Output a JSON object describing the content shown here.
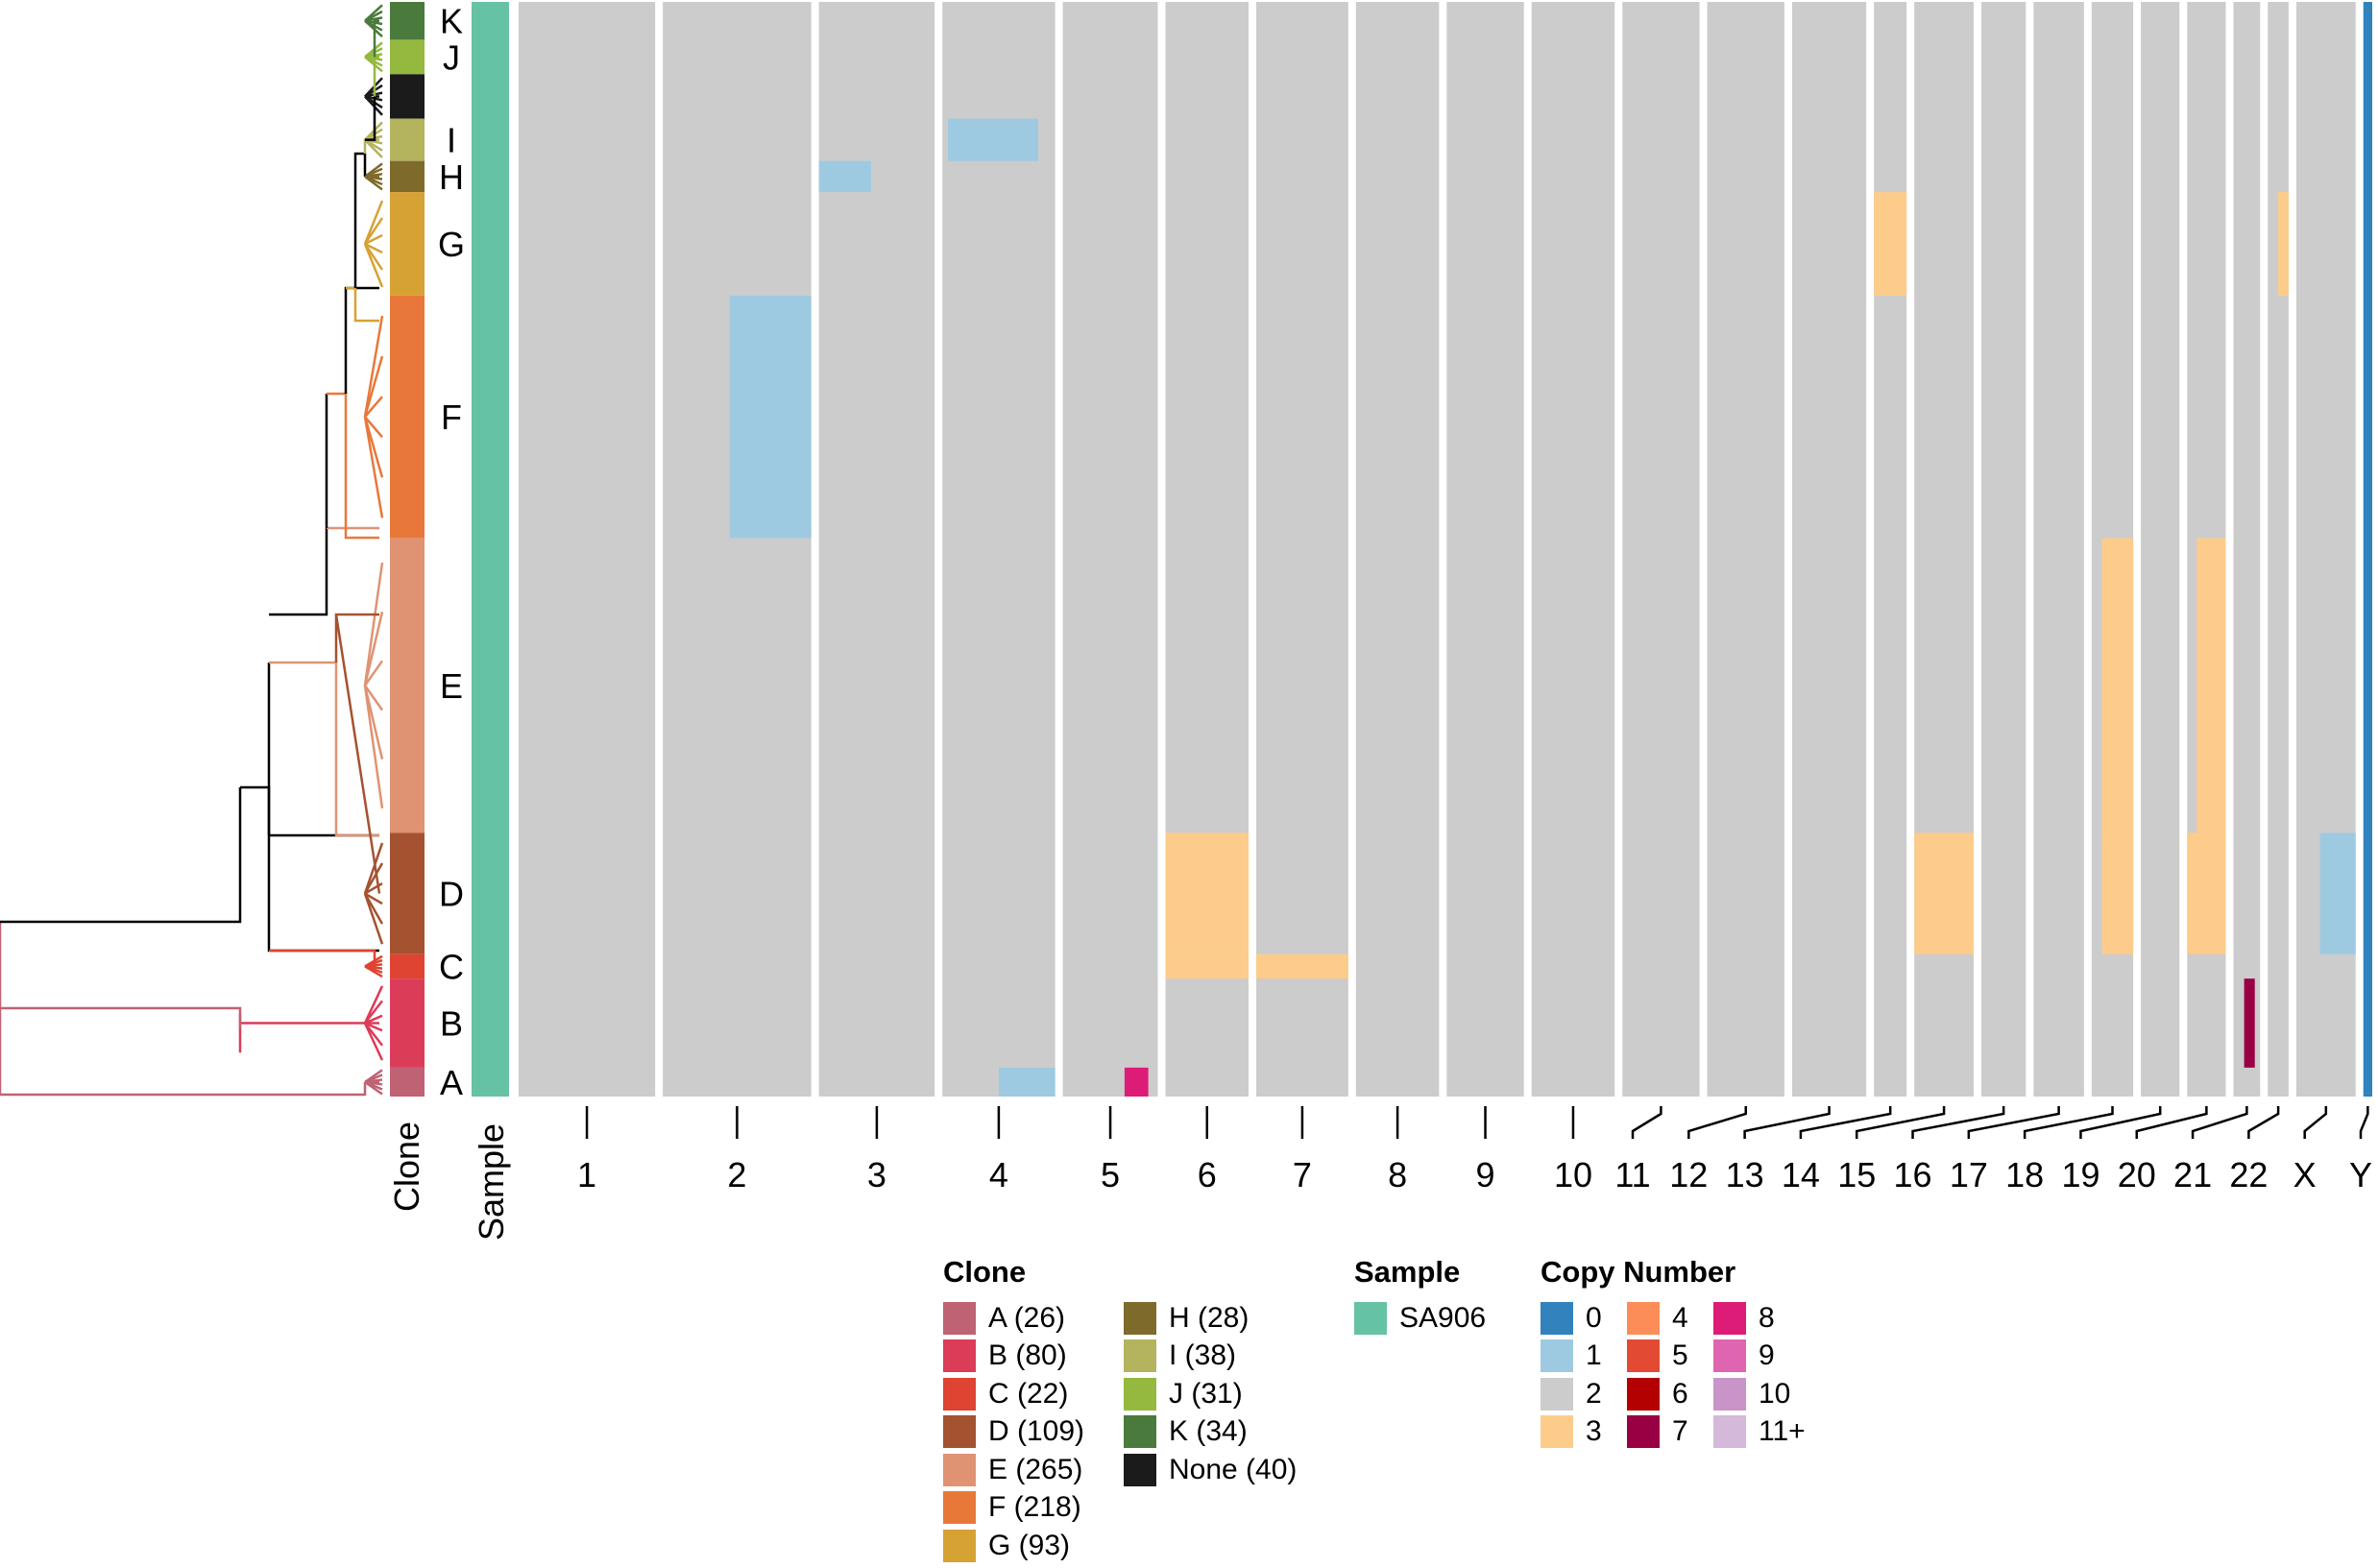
{
  "chart_data": {
    "type": "heatmap",
    "title": "",
    "row_annotations": {
      "clone_label": "Clone",
      "sample_label": "Sample"
    },
    "clones": [
      {
        "id": "K",
        "count": 34,
        "color": "#4A7A3C"
      },
      {
        "id": "J",
        "count": 31,
        "color": "#94B93E"
      },
      {
        "id": "None",
        "count": 40,
        "color": "#1B1B1B"
      },
      {
        "id": "I",
        "count": 38,
        "color": "#B4B35E"
      },
      {
        "id": "H",
        "count": 28,
        "color": "#7E6A2A"
      },
      {
        "id": "G",
        "count": 93,
        "color": "#D6A234"
      },
      {
        "id": "F",
        "count": 218,
        "color": "#E8783A"
      },
      {
        "id": "E",
        "count": 265,
        "color": "#DF9373"
      },
      {
        "id": "D",
        "count": 109,
        "color": "#A45230"
      },
      {
        "id": "C",
        "count": 22,
        "color": "#DF4332"
      },
      {
        "id": "B",
        "count": 80,
        "color": "#DB3C58"
      },
      {
        "id": "A",
        "count": 26,
        "color": "#BE6274"
      }
    ],
    "chromosomes": [
      "1",
      "2",
      "3",
      "4",
      "5",
      "6",
      "7",
      "8",
      "9",
      "10",
      "11",
      "12",
      "13",
      "14",
      "15",
      "16",
      "17",
      "18",
      "19",
      "20",
      "21",
      "22",
      "X",
      "Y"
    ],
    "chromosome_widths": [
      92,
      100,
      78,
      76,
      64,
      56,
      62,
      56,
      52,
      56,
      52,
      52,
      50,
      22,
      40,
      30,
      34,
      28,
      26,
      26,
      18,
      14,
      40,
      6
    ],
    "baseline_copy_number": 2,
    "segments": [
      {
        "clone": "D",
        "chr": "6",
        "start": 0,
        "end": 1,
        "cn": 3
      },
      {
        "clone": "D",
        "chr": "15",
        "start": 0,
        "end": 1,
        "cn": 3
      },
      {
        "clone": "D",
        "chr": "20",
        "start": 0,
        "end": 1,
        "cn": 3
      },
      {
        "clone": "D",
        "chr": "18",
        "start": 0.25,
        "end": 1,
        "cn": 3
      },
      {
        "clone": "D",
        "chr": "X",
        "start": 0.4,
        "end": 1,
        "cn": 1
      },
      {
        "clone": "C",
        "chr": "6",
        "start": 0,
        "end": 1,
        "cn": 3
      },
      {
        "clone": "C",
        "chr": "7",
        "start": 0,
        "end": 1,
        "cn": 3
      },
      {
        "clone": "E",
        "chr": "18",
        "start": 0.25,
        "end": 1,
        "cn": 3
      },
      {
        "clone": "E",
        "chr": "20",
        "start": 0.25,
        "end": 1,
        "cn": 3
      },
      {
        "clone": "F",
        "chr": "2",
        "start": 0.45,
        "end": 1,
        "cn": 1
      },
      {
        "clone": "G",
        "chr": "14",
        "start": 0,
        "end": 1,
        "cn": 3
      },
      {
        "clone": "G",
        "chr": "22",
        "start": 0.5,
        "end": 1,
        "cn": 3
      },
      {
        "clone": "I",
        "chr": "4",
        "start": 0.05,
        "end": 0.85,
        "cn": 1
      },
      {
        "clone": "H",
        "chr": "3",
        "start": 0,
        "end": 0.45,
        "cn": 1
      },
      {
        "clone": "B",
        "chr": "21",
        "start": 0.4,
        "end": 0.8,
        "cn": 7
      },
      {
        "clone": "A",
        "chr": "4",
        "start": 0.5,
        "end": 1,
        "cn": 1
      },
      {
        "clone": "A",
        "chr": "5",
        "start": 0.65,
        "end": 0.9,
        "cn": 8
      }
    ],
    "legend": {
      "clone_title": "Clone",
      "clone_items": [
        "A (26)",
        "B (80)",
        "C (22)",
        "D (109)",
        "E (265)",
        "F (218)",
        "G (93)",
        "H (28)",
        "I (38)",
        "J (31)",
        "K (34)",
        "None (40)"
      ],
      "sample_title": "Sample",
      "sample_items": [
        {
          "label": "SA906",
          "color": "#66C2A5"
        }
      ],
      "cn_title": "Copy Number",
      "cn_items": [
        {
          "label": "0",
          "color": "#3182BD"
        },
        {
          "label": "1",
          "color": "#9ECAE1"
        },
        {
          "label": "2",
          "color": "#CCCCCC"
        },
        {
          "label": "3",
          "color": "#FDCC8A"
        },
        {
          "label": "4",
          "color": "#FC8D59"
        },
        {
          "label": "5",
          "color": "#E34A33"
        },
        {
          "label": "6",
          "color": "#B30000"
        },
        {
          "label": "7",
          "color": "#980043"
        },
        {
          "label": "8",
          "color": "#DD1C77"
        },
        {
          "label": "9",
          "color": "#DF65B0"
        },
        {
          "label": "10",
          "color": "#C994C7"
        },
        {
          "label": "11+",
          "color": "#D4B9DA"
        }
      ]
    }
  }
}
